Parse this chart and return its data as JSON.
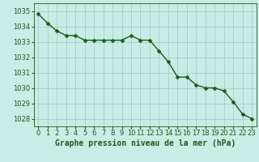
{
  "x": [
    0,
    1,
    2,
    3,
    4,
    5,
    6,
    7,
    8,
    9,
    10,
    11,
    12,
    13,
    14,
    15,
    16,
    17,
    18,
    19,
    20,
    21,
    22,
    23
  ],
  "y": [
    1034.8,
    1034.2,
    1033.7,
    1033.4,
    1033.4,
    1033.1,
    1033.1,
    1033.1,
    1033.1,
    1033.1,
    1033.4,
    1033.1,
    1033.1,
    1032.4,
    1031.7,
    1030.7,
    1030.7,
    1030.2,
    1030.0,
    1030.0,
    1029.8,
    1029.1,
    1028.3,
    1028.0
  ],
  "ylim": [
    1027.5,
    1035.5
  ],
  "yticks": [
    1028,
    1029,
    1030,
    1031,
    1032,
    1033,
    1034,
    1035
  ],
  "xticks": [
    0,
    1,
    2,
    3,
    4,
    5,
    6,
    7,
    8,
    9,
    10,
    11,
    12,
    13,
    14,
    15,
    16,
    17,
    18,
    19,
    20,
    21,
    22,
    23
  ],
  "line_color": "#1a5c1a",
  "marker_color": "#1a5c1a",
  "bg_color": "#c8ece6",
  "grid_color": "#a0c8c0",
  "xlabel": "Graphe pression niveau de la mer (hPa)",
  "xlabel_color": "#1a5c1a",
  "tick_color": "#1a5c1a",
  "axis_color": "#1a5c1a",
  "marker_size": 2.5,
  "line_width": 1.0,
  "xlabel_fontsize": 7.0,
  "tick_fontsize": 6.0
}
